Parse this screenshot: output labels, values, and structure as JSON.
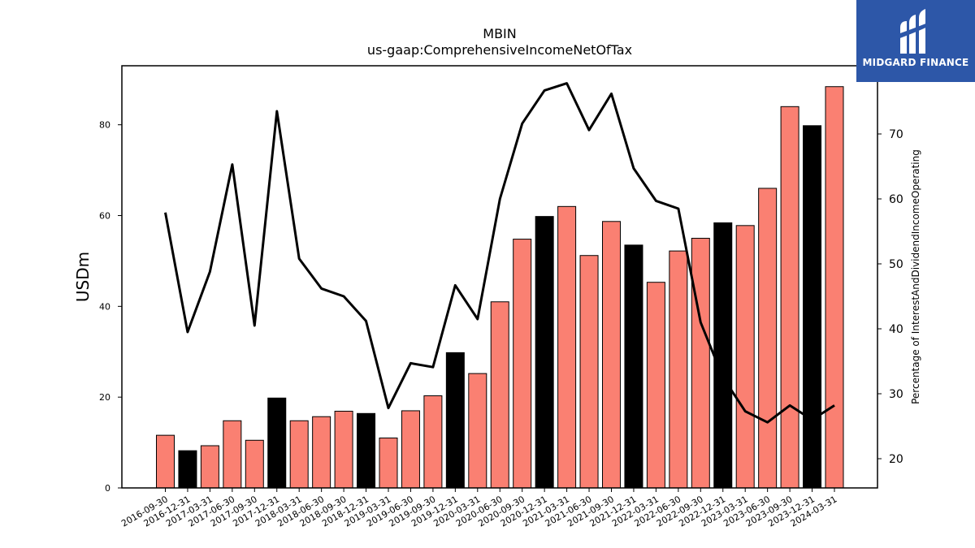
{
  "title_line1": "MBIN",
  "title_line2": "us-gaap:ComprehensiveIncomeNetOfTax",
  "brand": {
    "name": "MIDGARD FINANCE",
    "color": "#2d57a8"
  },
  "chart_data": {
    "type": "bar",
    "categories": [
      "2016-09-30",
      "2016-12-31",
      "2017-03-31",
      "2017-06-30",
      "2017-09-30",
      "2017-12-31",
      "2018-03-31",
      "2018-06-30",
      "2018-09-30",
      "2018-12-31",
      "2019-03-31",
      "2019-06-30",
      "2019-09-30",
      "2019-12-31",
      "2020-03-31",
      "2020-06-30",
      "2020-09-30",
      "2020-12-31",
      "2021-03-31",
      "2021-06-30",
      "2021-09-30",
      "2021-12-31",
      "2022-03-31",
      "2022-06-30",
      "2022-09-30",
      "2022-12-31",
      "2023-03-31",
      "2023-06-30",
      "2023-09-30",
      "2023-12-31",
      "2024-03-31"
    ],
    "series": [
      {
        "axis": "left",
        "values": [
          11.6,
          8.2,
          9.3,
          14.8,
          10.5,
          19.8,
          14.8,
          15.7,
          16.9,
          16.4,
          11.0,
          17.0,
          20.3,
          29.8,
          25.2,
          41.0,
          54.8,
          59.8,
          62.0,
          51.2,
          58.7,
          53.5,
          45.3,
          52.2,
          55.0,
          58.4,
          57.8,
          66.0,
          84.0,
          79.8,
          88.4
        ],
        "highlight_indices": [
          1,
          5,
          9,
          13,
          17,
          21,
          25,
          29
        ],
        "color": "#fa8072",
        "highlight_color": "#000000"
      },
      {
        "axis": "right",
        "type": "line",
        "values": [
          57.9,
          39.5,
          48.8,
          65.3,
          40.5,
          73.5,
          50.8,
          46.2,
          45.0,
          41.2,
          27.8,
          34.7,
          34.1,
          46.7,
          41.5,
          60.0,
          71.6,
          76.7,
          77.8,
          70.6,
          76.2,
          64.7,
          59.7,
          58.5,
          41.0,
          32.5,
          27.3,
          25.6,
          28.2,
          26.0,
          28.2
        ],
        "color": "#000000"
      }
    ],
    "ylabel": "USDm",
    "y2label": "Percentage of InterestAndDividendIncomeOperating",
    "ylim": [
      0,
      93
    ],
    "y2lim": [
      15.5,
      80.5
    ],
    "yticks": [
      0,
      20,
      40,
      60,
      80
    ],
    "y2ticks": [
      20,
      30,
      40,
      50,
      60,
      70
    ]
  }
}
